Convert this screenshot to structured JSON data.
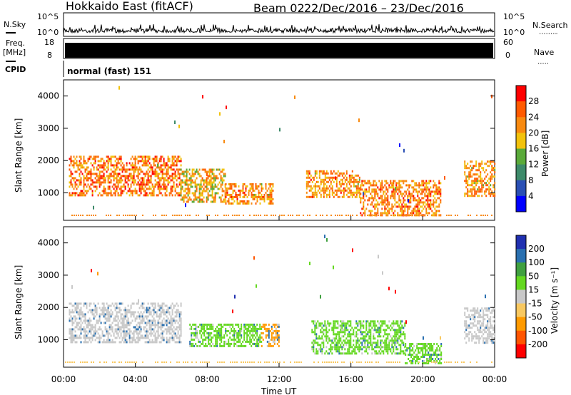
{
  "header": {
    "station": "Hokkaido East (fitACF)",
    "beam": "Beam 02",
    "date_range": "22/Dec/2016 – 23/Dec/2016"
  },
  "strips": {
    "nsky_label": "N.Sky",
    "nsky_ticks": [
      "10^5",
      "10^0"
    ],
    "nsearch_label": "N.Search",
    "freq_label_1": "Freq.",
    "freq_label_2": "[MHz]",
    "freq_ticks": [
      "18",
      "8"
    ],
    "nave_ticks": [
      "60",
      "0"
    ],
    "nave_label": "Nave",
    "cpid_label": "CPID",
    "cpid_value": "normal (fast) 151"
  },
  "chart_data": [
    {
      "type": "heatmap",
      "name": "power",
      "ylabel": "Slant Range [km]",
      "ylim": [
        150,
        4500
      ],
      "yticks": [
        "1000",
        "2000",
        "3000",
        "4000"
      ],
      "colorbar_label": "Power [dB]",
      "colorbar_ticks": [
        "4",
        "8",
        "12",
        "16",
        "20",
        "24",
        "28"
      ],
      "colorscale": [
        "#0000ff",
        "#2a4fb4",
        "#3d8a6a",
        "#5aaa3a",
        "#f2c20c",
        "#f88a10",
        "#ff5a00",
        "#ff0000"
      ],
      "regions": [
        {
          "t": [
            0.3,
            6.5
          ],
          "r": [
            900,
            2150
          ],
          "level": 0.78
        },
        {
          "t": [
            6.5,
            9.0
          ],
          "r": [
            700,
            1750
          ],
          "level": 0.6
        },
        {
          "t": [
            9.0,
            11.7
          ],
          "r": [
            700,
            1300
          ],
          "level": 0.72
        },
        {
          "t": [
            13.5,
            16.5
          ],
          "r": [
            850,
            1700
          ],
          "level": 0.72
        },
        {
          "t": [
            16.5,
            21.0
          ],
          "r": [
            300,
            1400
          ],
          "level": 0.75
        },
        {
          "t": [
            22.3,
            24.0
          ],
          "r": [
            900,
            2000
          ],
          "level": 0.7
        }
      ]
    },
    {
      "type": "heatmap",
      "name": "velocity",
      "xlabel": "Time UT",
      "ylabel": "Slant Range [km]",
      "ylim": [
        150,
        4500
      ],
      "yticks": [
        "1000",
        "2000",
        "3000",
        "4000"
      ],
      "xticks": [
        "00:00",
        "04:00",
        "08:00",
        "12:00",
        "16:00",
        "20:00",
        "00:00"
      ],
      "xlim": [
        0,
        24
      ],
      "colorbar_label": "Velocity [m s⁻¹]",
      "colorbar_ticks": [
        "200",
        "100",
        "50",
        "15",
        "-15",
        "-50",
        "-100",
        "-200"
      ],
      "colorscale": [
        "#ff0000",
        "#ff5500",
        "#ff9a00",
        "#f8c860",
        "#c8c8c8",
        "#64d820",
        "#40a040",
        "#2a70b0",
        "#2030b0"
      ],
      "regions": [
        {
          "t": [
            0.3,
            6.5
          ],
          "r": [
            900,
            2150
          ],
          "color": "#c8c8c8"
        },
        {
          "t": [
            7.0,
            11.0
          ],
          "r": [
            800,
            1500
          ],
          "color": "#64d820"
        },
        {
          "t": [
            11.0,
            12.0
          ],
          "r": [
            800,
            1500
          ],
          "color": "#ff9a00"
        },
        {
          "t": [
            13.8,
            19.0
          ],
          "r": [
            600,
            1600
          ],
          "color": "#64d820"
        },
        {
          "t": [
            19.0,
            21.0
          ],
          "r": [
            300,
            900
          ],
          "color": "#64d820"
        },
        {
          "t": [
            22.3,
            24.0
          ],
          "r": [
            900,
            2000
          ],
          "color": "#c8c8c8"
        }
      ]
    }
  ]
}
